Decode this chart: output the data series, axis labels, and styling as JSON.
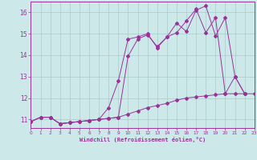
{
  "xlabel": "Windchill (Refroidissement éolien,°C)",
  "xlim": [
    0,
    23
  ],
  "ylim": [
    10.6,
    16.5
  ],
  "yticks": [
    11,
    12,
    13,
    14,
    15,
    16
  ],
  "xticks": [
    0,
    1,
    2,
    3,
    4,
    5,
    6,
    7,
    8,
    9,
    10,
    11,
    12,
    13,
    14,
    15,
    16,
    17,
    18,
    19,
    20,
    21,
    22,
    23
  ],
  "background_color": "#cce8e8",
  "grid_color": "#aacccc",
  "line_color": "#993399",
  "line1_x": [
    0,
    1,
    2,
    3,
    4,
    5,
    6,
    7,
    8,
    9,
    10,
    11,
    12,
    13,
    14,
    15,
    16,
    17,
    18,
    19,
    20,
    21,
    22,
    23
  ],
  "line1_y": [
    10.9,
    11.1,
    11.1,
    10.8,
    10.85,
    10.9,
    10.95,
    11.0,
    11.05,
    11.1,
    11.25,
    11.4,
    11.55,
    11.65,
    11.75,
    11.9,
    12.0,
    12.05,
    12.1,
    12.15,
    12.2,
    12.2,
    12.2,
    12.2
  ],
  "line2_x": [
    0,
    1,
    2,
    3,
    4,
    5,
    6,
    7,
    8,
    9,
    10,
    11,
    12,
    13,
    14,
    15,
    16,
    17,
    18,
    19,
    20,
    21,
    22
  ],
  "line2_y": [
    10.9,
    11.1,
    11.1,
    10.8,
    10.85,
    10.9,
    10.95,
    11.0,
    11.05,
    11.1,
    13.95,
    14.75,
    14.95,
    14.4,
    14.85,
    15.5,
    15.1,
    16.1,
    16.3,
    14.9,
    15.75,
    13.0,
    12.2
  ],
  "line3_x": [
    0,
    1,
    2,
    3,
    4,
    5,
    6,
    7,
    8,
    9,
    10,
    11,
    12,
    13,
    14,
    15,
    16,
    17,
    18,
    19,
    20,
    21,
    22
  ],
  "line3_y": [
    10.9,
    11.1,
    11.1,
    10.8,
    10.85,
    10.9,
    10.95,
    11.0,
    11.55,
    12.8,
    14.75,
    14.85,
    15.0,
    14.35,
    14.85,
    15.05,
    15.6,
    16.15,
    15.05,
    15.75,
    12.2,
    13.0,
    12.2
  ]
}
